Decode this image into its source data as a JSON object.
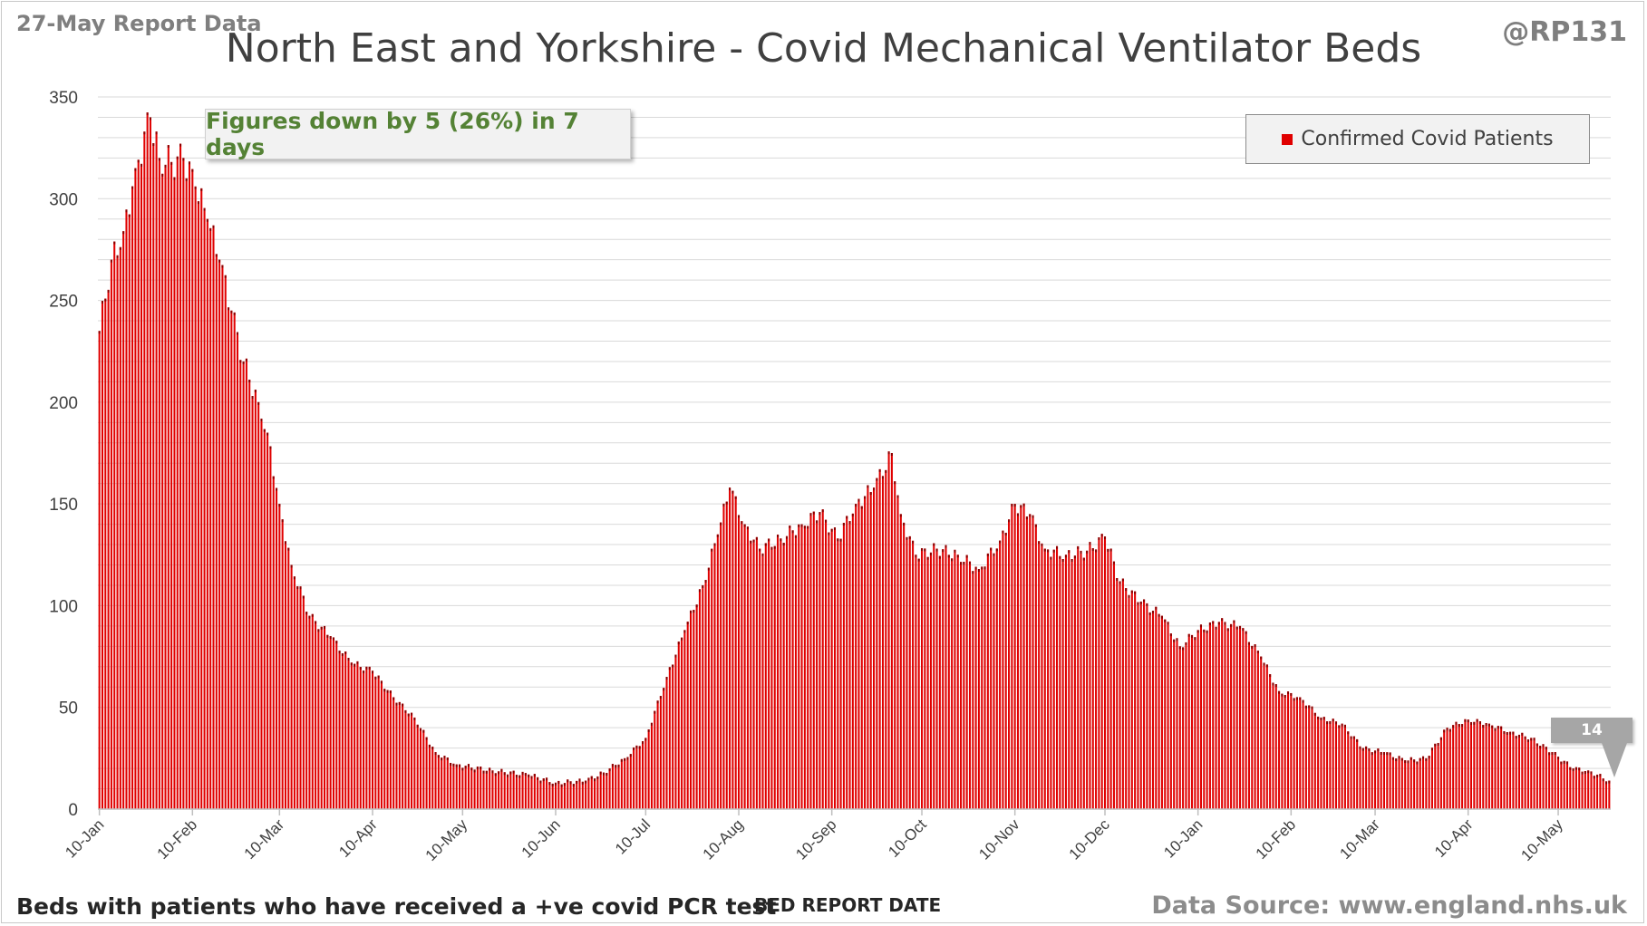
{
  "header": {
    "report_date": "27-May Report Data",
    "handle": "@RP131",
    "title": "North East and Yorkshire - Covid Mechanical Ventilator Beds"
  },
  "annotation": {
    "text": "Figures down by 5 (26%) in 7 days"
  },
  "legend": {
    "label": "Confirmed Covid Patients"
  },
  "callout": {
    "value": "14"
  },
  "footer": {
    "note": "Beds with patients who have received a +ve covid PCR test",
    "xaxis_title": "BED REPORT DATE",
    "source": "Data Source: www.england.nhs.uk"
  },
  "colors": {
    "bar": "#e00000",
    "bar_top": "#8b0000",
    "grid": "#d9d9d9",
    "annotation_text": "#548235",
    "callout": "#a6a6a6"
  },
  "chart_data": {
    "type": "bar",
    "title": "North East and Yorkshire - Covid Mechanical Ventilator Beds",
    "xlabel": "BED REPORT DATE",
    "ylabel": "",
    "ylim": [
      0,
      350
    ],
    "yticks": [
      0,
      50,
      100,
      150,
      200,
      250,
      300,
      350
    ],
    "grid": true,
    "legend_position": "top-right",
    "x_tick_labels": [
      "10-Jan",
      "10-Feb",
      "10-Mar",
      "10-Apr",
      "10-May",
      "10-Jun",
      "10-Jul",
      "10-Aug",
      "10-Sep",
      "10-Oct",
      "10-Nov",
      "10-Dec",
      "10-Jan",
      "10-Feb",
      "10-Mar",
      "10-Apr",
      "10-May"
    ],
    "x_start": "2020-01-10",
    "series": [
      {
        "name": "Confirmed Covid Patients",
        "description": "Daily values 10-Jan-2020 to 27-May-2021 (504 bars), read at key points",
        "keypoints": [
          [
            "2020-01-10",
            235
          ],
          [
            "2020-01-14",
            270
          ],
          [
            "2020-01-18",
            284
          ],
          [
            "2020-01-22",
            315
          ],
          [
            "2020-01-27",
            340
          ],
          [
            "2020-01-30",
            320
          ],
          [
            "2020-02-03",
            318
          ],
          [
            "2020-02-07",
            320
          ],
          [
            "2020-02-11",
            306
          ],
          [
            "2020-02-15",
            290
          ],
          [
            "2020-02-19",
            270
          ],
          [
            "2020-02-23",
            245
          ],
          [
            "2020-02-27",
            220
          ],
          [
            "2020-03-03",
            200
          ],
          [
            "2020-03-06",
            185
          ],
          [
            "2020-03-10",
            150
          ],
          [
            "2020-03-14",
            120
          ],
          [
            "2020-03-20",
            95
          ],
          [
            "2020-03-27",
            85
          ],
          [
            "2020-04-03",
            72
          ],
          [
            "2020-04-10",
            68
          ],
          [
            "2020-04-17",
            55
          ],
          [
            "2020-04-24",
            45
          ],
          [
            "2020-05-01",
            28
          ],
          [
            "2020-05-08",
            22
          ],
          [
            "2020-05-20",
            19
          ],
          [
            "2020-06-01",
            17
          ],
          [
            "2020-06-10",
            13
          ],
          [
            "2020-06-20",
            14
          ],
          [
            "2020-06-26",
            18
          ],
          [
            "2020-07-03",
            25
          ],
          [
            "2020-07-10",
            35
          ],
          [
            "2020-07-17",
            65
          ],
          [
            "2020-07-23",
            88
          ],
          [
            "2020-07-29",
            110
          ],
          [
            "2020-08-03",
            135
          ],
          [
            "2020-08-07",
            158
          ],
          [
            "2020-08-12",
            140
          ],
          [
            "2020-08-17",
            128
          ],
          [
            "2020-08-24",
            133
          ],
          [
            "2020-08-31",
            140
          ],
          [
            "2020-09-06",
            146
          ],
          [
            "2020-09-12",
            133
          ],
          [
            "2020-09-18",
            150
          ],
          [
            "2020-09-24",
            158
          ],
          [
            "2020-09-30",
            175
          ],
          [
            "2020-10-03",
            145
          ],
          [
            "2020-10-08",
            125
          ],
          [
            "2020-10-15",
            128
          ],
          [
            "2020-10-22",
            125
          ],
          [
            "2020-10-29",
            118
          ],
          [
            "2020-11-05",
            132
          ],
          [
            "2020-11-10",
            150
          ],
          [
            "2020-11-15",
            145
          ],
          [
            "2020-11-20",
            128
          ],
          [
            "2020-11-27",
            125
          ],
          [
            "2020-12-04",
            127
          ],
          [
            "2020-12-10",
            134
          ],
          [
            "2020-12-15",
            112
          ],
          [
            "2020-12-22",
            102
          ],
          [
            "2020-12-29",
            95
          ],
          [
            "2021-01-04",
            80
          ],
          [
            "2021-01-10",
            88
          ],
          [
            "2021-01-17",
            92
          ],
          [
            "2021-01-24",
            90
          ],
          [
            "2021-01-31",
            75
          ],
          [
            "2021-02-06",
            58
          ],
          [
            "2021-02-13",
            55
          ],
          [
            "2021-02-20",
            45
          ],
          [
            "2021-02-27",
            42
          ],
          [
            "2021-03-06",
            30
          ],
          [
            "2021-03-13",
            28
          ],
          [
            "2021-03-20",
            24
          ],
          [
            "2021-03-27",
            25
          ],
          [
            "2021-04-03",
            40
          ],
          [
            "2021-04-10",
            44
          ],
          [
            "2021-04-17",
            42
          ],
          [
            "2021-04-24",
            38
          ],
          [
            "2021-05-01",
            35
          ],
          [
            "2021-05-08",
            28
          ],
          [
            "2021-05-15",
            20
          ],
          [
            "2021-05-20",
            19
          ],
          [
            "2021-05-27",
            14
          ]
        ]
      }
    ]
  }
}
